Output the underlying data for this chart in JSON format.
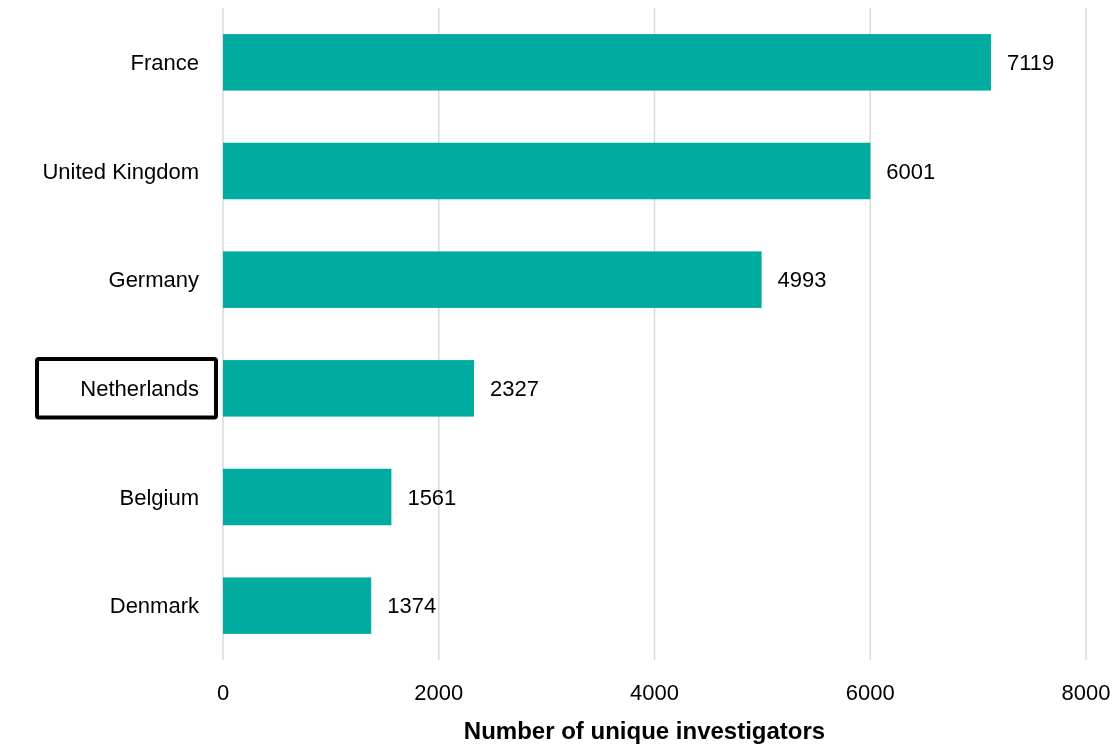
{
  "chart_data": {
    "type": "bar",
    "orientation": "horizontal",
    "xlabel": "Number of unique investigators",
    "categories": [
      "France",
      "United Kingdom",
      "Germany",
      "Netherlands",
      "Belgium",
      "Denmark"
    ],
    "values": [
      7119,
      6001,
      4993,
      2327,
      1561,
      1374
    ],
    "color": "#00ab9f",
    "xlim": [
      0,
      8000
    ],
    "xticks": [
      0,
      2000,
      4000,
      6000,
      8000
    ],
    "grid": "x",
    "data_labels": true
  }
}
